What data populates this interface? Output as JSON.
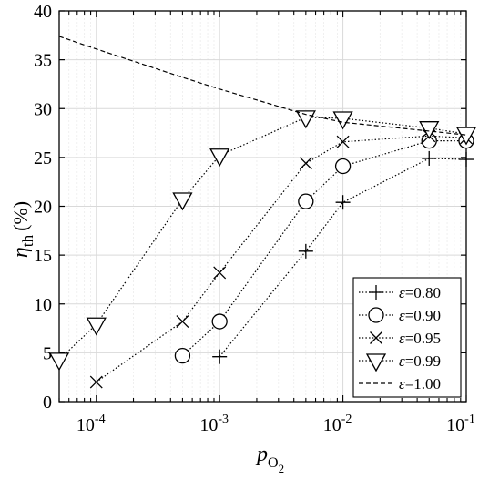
{
  "chart_data": {
    "type": "line",
    "xscale": "log",
    "xlim": [
      5e-05,
      0.1
    ],
    "ylim": [
      0,
      40
    ],
    "grid": true,
    "legend_position": "bottom-right",
    "xlabel": {
      "base": "p",
      "sub": "O",
      "subsub": "2"
    },
    "ylabel": {
      "base": "η",
      "sub": "th",
      "unit": "(%)"
    },
    "xticks": [
      {
        "base": "10",
        "exp": "-4",
        "value": 0.0001
      },
      {
        "base": "10",
        "exp": "-3",
        "value": 0.001
      },
      {
        "base": "10",
        "exp": "-2",
        "value": 0.01
      },
      {
        "base": "10",
        "exp": "-1",
        "value": 0.1
      }
    ],
    "yticks": [
      "0",
      "5",
      "10",
      "15",
      "20",
      "25",
      "30",
      "35",
      "40"
    ],
    "series": [
      {
        "name": "ε=0.80",
        "marker": "plus",
        "linestyle": "dotted",
        "points": [
          [
            0.001,
            4.6
          ],
          [
            0.005,
            15.4
          ],
          [
            0.01,
            20.4
          ],
          [
            0.05,
            24.9
          ],
          [
            0.1,
            24.8
          ]
        ]
      },
      {
        "name": "ε=0.90",
        "marker": "circle",
        "linestyle": "dotted",
        "points": [
          [
            0.0005,
            4.7
          ],
          [
            0.001,
            8.2
          ],
          [
            0.005,
            20.5
          ],
          [
            0.01,
            24.1
          ],
          [
            0.05,
            26.7
          ],
          [
            0.1,
            26.7
          ]
        ]
      },
      {
        "name": "ε=0.95",
        "marker": "x",
        "linestyle": "dotted",
        "points": [
          [
            0.0001,
            2.0
          ],
          [
            0.0005,
            8.2
          ],
          [
            0.001,
            13.2
          ],
          [
            0.005,
            24.4
          ],
          [
            0.01,
            26.6
          ],
          [
            0.05,
            27.2
          ],
          [
            0.1,
            27.0
          ]
        ]
      },
      {
        "name": "ε=0.99",
        "marker": "triangle-down",
        "linestyle": "dotted",
        "points": [
          [
            5e-05,
            4.3
          ],
          [
            0.0001,
            7.9
          ],
          [
            0.0005,
            20.7
          ],
          [
            0.001,
            25.2
          ],
          [
            0.005,
            29.1
          ],
          [
            0.01,
            29.0
          ],
          [
            0.05,
            28.0
          ],
          [
            0.1,
            27.4
          ]
        ]
      },
      {
        "name": "ε=1.00",
        "marker": "none",
        "linestyle": "dashed",
        "points": [
          [
            5e-05,
            37.4
          ],
          [
            0.0001,
            36.1
          ],
          [
            0.0005,
            33.2
          ],
          [
            0.001,
            32.0
          ],
          [
            0.005,
            29.4
          ],
          [
            0.01,
            28.6
          ],
          [
            0.05,
            27.7
          ],
          [
            0.1,
            27.3
          ]
        ]
      }
    ]
  }
}
